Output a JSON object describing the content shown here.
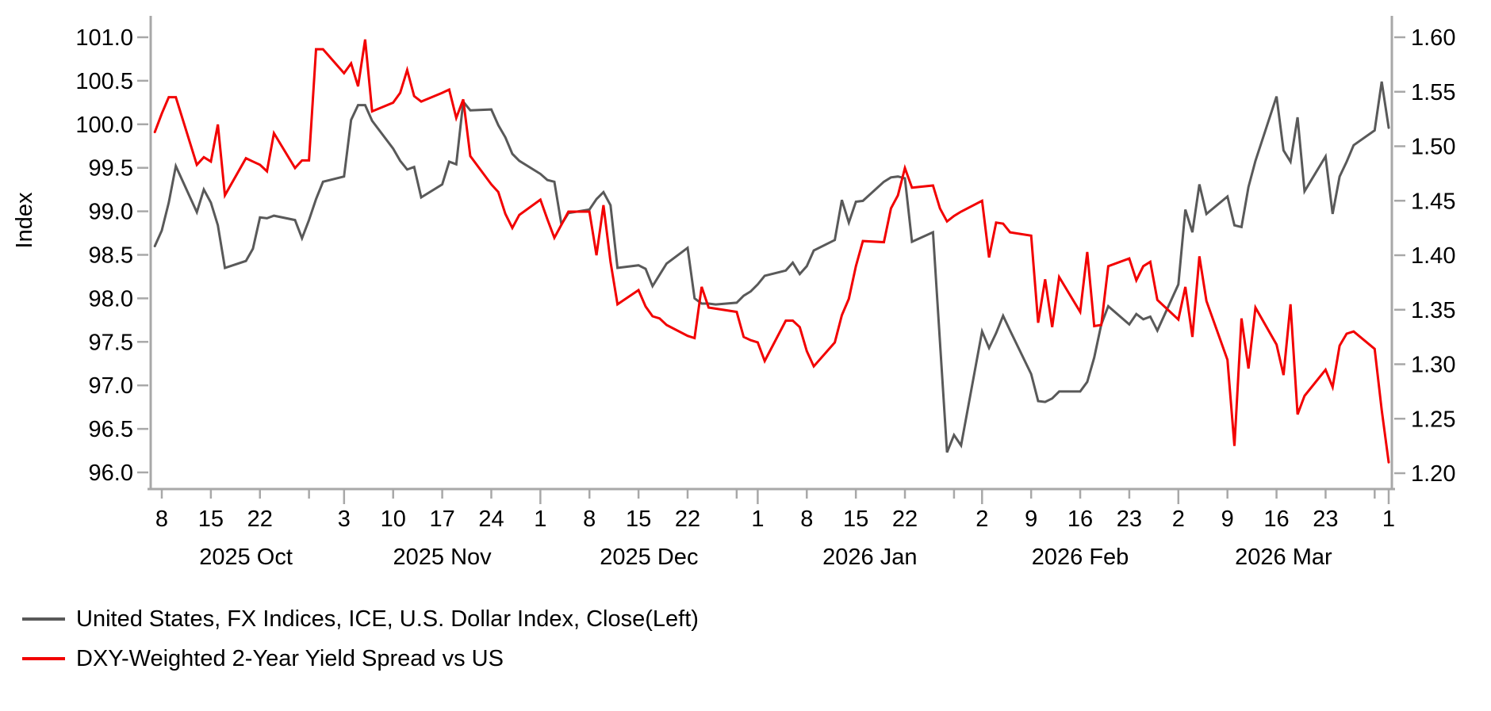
{
  "page": {
    "background": "#ffffff"
  },
  "chart_data": {
    "type": "line",
    "title": "",
    "grid": "off",
    "legend_position": "bottom-left",
    "left_axis": {
      "label": "Index",
      "min": 96.0,
      "max": 101.0,
      "ticks": [
        {
          "value": 101.0,
          "label": "101.0"
        },
        {
          "value": 100.5,
          "label": "100.5"
        },
        {
          "value": 100.0,
          "label": "100.0"
        },
        {
          "value": 99.5,
          "label": "99.5"
        },
        {
          "value": 99.0,
          "label": "99.0"
        },
        {
          "value": 98.5,
          "label": "98.5"
        },
        {
          "value": 98.0,
          "label": "98.0"
        },
        {
          "value": 97.5,
          "label": "97.5"
        },
        {
          "value": 97.0,
          "label": "97.0"
        },
        {
          "value": 96.5,
          "label": "96.5"
        },
        {
          "value": 96.0,
          "label": "96.0"
        }
      ]
    },
    "right_axis": {
      "label": "",
      "min": 1.2,
      "max": 1.6,
      "ticks": [
        {
          "value": 1.6,
          "label": "1.60"
        },
        {
          "value": 1.55,
          "label": "1.55"
        },
        {
          "value": 1.5,
          "label": "1.50"
        },
        {
          "value": 1.45,
          "label": "1.45"
        },
        {
          "value": 1.4,
          "label": "1.40"
        },
        {
          "value": 1.35,
          "label": "1.35"
        },
        {
          "value": 1.3,
          "label": "1.30"
        },
        {
          "value": 1.25,
          "label": "1.25"
        },
        {
          "value": 1.2,
          "label": "1.20"
        }
      ]
    },
    "x_axis": {
      "unit": "days since 2025-10-08",
      "week_ticks": [
        {
          "day": 0,
          "label": "8"
        },
        {
          "day": 7,
          "label": "15"
        },
        {
          "day": 14,
          "label": "22"
        },
        {
          "day": 26,
          "label": "3"
        },
        {
          "day": 33,
          "label": "10"
        },
        {
          "day": 40,
          "label": "17"
        },
        {
          "day": 47,
          "label": "24"
        },
        {
          "day": 54,
          "label": "1"
        },
        {
          "day": 61,
          "label": "8"
        },
        {
          "day": 68,
          "label": "15"
        },
        {
          "day": 75,
          "label": "22"
        },
        {
          "day": 85,
          "label": "1"
        },
        {
          "day": 92,
          "label": "8"
        },
        {
          "day": 99,
          "label": "15"
        },
        {
          "day": 106,
          "label": "22"
        },
        {
          "day": 117,
          "label": "2"
        },
        {
          "day": 124,
          "label": "9"
        },
        {
          "day": 131,
          "label": "16"
        },
        {
          "day": 138,
          "label": "23"
        },
        {
          "day": 145,
          "label": "2"
        },
        {
          "day": 152,
          "label": "9"
        },
        {
          "day": 159,
          "label": "16"
        },
        {
          "day": 166,
          "label": "23"
        },
        {
          "day": 175,
          "label": "1"
        }
      ],
      "minor_tick_days": [
        21,
        82,
        113,
        173
      ],
      "month_start_days": [
        26,
        54,
        85,
        117,
        145,
        175
      ],
      "month_labels": [
        {
          "day": 12,
          "label": "2025 Oct"
        },
        {
          "day": 40,
          "label": "2025 Nov"
        },
        {
          "day": 69.5,
          "label": "2025 Dec"
        },
        {
          "day": 101,
          "label": "2026 Jan"
        },
        {
          "day": 131,
          "label": "2026 Feb"
        },
        {
          "day": 160,
          "label": "2026 Mar"
        }
      ]
    },
    "colors": {
      "axis": "#a8a8a8",
      "gray_series": "#595959",
      "red_series": "#f20000"
    },
    "series": [
      {
        "name": "United States, FX Indices, ICE, U.S. Dollar Index, Close(Left)",
        "axis": "left",
        "color": "#595959",
        "points": [
          [
            -1,
            98.6
          ],
          [
            0,
            98.78
          ],
          [
            1,
            99.1
          ],
          [
            2,
            99.52
          ],
          [
            5,
            98.99
          ],
          [
            6,
            99.25
          ],
          [
            7,
            99.1
          ],
          [
            8,
            98.84
          ],
          [
            9,
            98.35
          ],
          [
            12,
            98.43
          ],
          [
            13,
            98.57
          ],
          [
            14,
            98.93
          ],
          [
            15,
            98.92
          ],
          [
            16,
            98.95
          ],
          [
            19,
            98.9
          ],
          [
            20,
            98.69
          ],
          [
            21,
            98.9
          ],
          [
            22,
            99.14
          ],
          [
            23,
            99.34
          ],
          [
            26,
            99.4
          ],
          [
            27,
            100.05
          ],
          [
            28,
            100.22
          ],
          [
            29,
            100.22
          ],
          [
            30,
            100.04
          ],
          [
            33,
            99.72
          ],
          [
            34,
            99.58
          ],
          [
            35,
            99.48
          ],
          [
            36,
            99.51
          ],
          [
            37,
            99.16
          ],
          [
            40,
            99.31
          ],
          [
            41,
            99.57
          ],
          [
            42,
            99.54
          ],
          [
            43,
            100.26
          ],
          [
            44,
            100.16
          ],
          [
            47,
            100.17
          ],
          [
            48,
            99.99
          ],
          [
            49,
            99.85
          ],
          [
            50,
            99.66
          ],
          [
            51,
            99.58
          ],
          [
            54,
            99.43
          ],
          [
            55,
            99.36
          ],
          [
            56,
            99.34
          ],
          [
            57,
            98.85
          ],
          [
            58,
            98.98
          ],
          [
            61,
            99.02
          ],
          [
            62,
            99.14
          ],
          [
            63,
            99.22
          ],
          [
            64,
            99.07
          ],
          [
            65,
            98.35
          ],
          [
            68,
            98.38
          ],
          [
            69,
            98.34
          ],
          [
            70,
            98.14
          ],
          [
            71,
            98.27
          ],
          [
            72,
            98.4
          ],
          [
            75,
            98.58
          ],
          [
            76,
            98.0
          ],
          [
            77,
            97.94
          ],
          [
            78,
            97.94
          ],
          [
            79,
            97.93
          ],
          [
            82,
            97.95
          ],
          [
            83,
            98.03
          ],
          [
            84,
            98.08
          ],
          [
            85,
            98.16
          ],
          [
            86,
            98.26
          ],
          [
            89,
            98.32
          ],
          [
            90,
            98.41
          ],
          [
            91,
            98.28
          ],
          [
            92,
            98.37
          ],
          [
            93,
            98.55
          ],
          [
            96,
            98.67
          ],
          [
            97,
            99.13
          ],
          [
            98,
            98.87
          ],
          [
            99,
            99.11
          ],
          [
            100,
            99.12
          ],
          [
            103,
            99.34
          ],
          [
            104,
            99.39
          ],
          [
            105,
            99.4
          ],
          [
            106,
            99.38
          ],
          [
            107,
            98.65
          ],
          [
            110,
            98.76
          ],
          [
            111,
            97.5
          ],
          [
            112,
            96.23
          ],
          [
            113,
            96.43
          ],
          [
            114,
            96.31
          ],
          [
            117,
            97.62
          ],
          [
            118,
            97.43
          ],
          [
            119,
            97.6
          ],
          [
            120,
            97.8
          ],
          [
            121,
            97.63
          ],
          [
            124,
            97.13
          ],
          [
            125,
            96.82
          ],
          [
            126,
            96.81
          ],
          [
            127,
            96.85
          ],
          [
            128,
            96.93
          ],
          [
            131,
            96.93
          ],
          [
            132,
            97.04
          ],
          [
            133,
            97.32
          ],
          [
            134,
            97.7
          ],
          [
            135,
            97.91
          ],
          [
            138,
            97.7
          ],
          [
            139,
            97.82
          ],
          [
            140,
            97.76
          ],
          [
            141,
            97.79
          ],
          [
            142,
            97.63
          ],
          [
            145,
            98.16
          ],
          [
            146,
            99.02
          ],
          [
            147,
            98.76
          ],
          [
            148,
            99.31
          ],
          [
            149,
            98.97
          ],
          [
            152,
            99.17
          ],
          [
            153,
            98.84
          ],
          [
            154,
            98.82
          ],
          [
            155,
            99.28
          ],
          [
            156,
            99.58
          ],
          [
            159,
            100.32
          ],
          [
            160,
            99.7
          ],
          [
            161,
            99.57
          ],
          [
            162,
            100.08
          ],
          [
            163,
            99.23
          ],
          [
            166,
            99.63
          ],
          [
            167,
            98.97
          ],
          [
            168,
            99.4
          ],
          [
            169,
            99.57
          ],
          [
            170,
            99.76
          ],
          [
            173,
            99.93
          ],
          [
            174,
            100.49
          ],
          [
            175,
            99.96
          ]
        ]
      },
      {
        "name": "DXY-Weighted 2-Year Yield Spread vs US",
        "axis": "right",
        "color": "#f20000",
        "points": [
          [
            -1,
            1.513
          ],
          [
            0,
            1.53
          ],
          [
            1,
            1.545
          ],
          [
            2,
            1.545
          ],
          [
            5,
            1.483
          ],
          [
            6,
            1.49
          ],
          [
            7,
            1.486
          ],
          [
            8,
            1.52
          ],
          [
            9,
            1.455
          ],
          [
            12,
            1.489
          ],
          [
            13,
            1.486
          ],
          [
            14,
            1.483
          ],
          [
            15,
            1.477
          ],
          [
            16,
            1.512
          ],
          [
            19,
            1.48
          ],
          [
            20,
            1.487
          ],
          [
            21,
            1.487
          ],
          [
            22,
            1.589
          ],
          [
            23,
            1.589
          ],
          [
            26,
            1.567
          ],
          [
            27,
            1.576
          ],
          [
            28,
            1.555
          ],
          [
            29,
            1.598
          ],
          [
            30,
            1.532
          ],
          [
            33,
            1.54
          ],
          [
            34,
            1.549
          ],
          [
            35,
            1.57
          ],
          [
            36,
            1.546
          ],
          [
            37,
            1.541
          ],
          [
            40,
            1.549
          ],
          [
            41,
            1.552
          ],
          [
            42,
            1.526
          ],
          [
            43,
            1.543
          ],
          [
            44,
            1.491
          ],
          [
            47,
            1.465
          ],
          [
            48,
            1.458
          ],
          [
            49,
            1.438
          ],
          [
            50,
            1.425
          ],
          [
            51,
            1.437
          ],
          [
            54,
            1.451
          ],
          [
            55,
            1.433
          ],
          [
            56,
            1.416
          ],
          [
            57,
            1.428
          ],
          [
            58,
            1.44
          ],
          [
            61,
            1.44
          ],
          [
            62,
            1.4
          ],
          [
            63,
            1.446
          ],
          [
            64,
            1.394
          ],
          [
            65,
            1.355
          ],
          [
            68,
            1.368
          ],
          [
            69,
            1.353
          ],
          [
            70,
            1.344
          ],
          [
            71,
            1.342
          ],
          [
            72,
            1.336
          ],
          [
            75,
            1.326
          ],
          [
            76,
            1.324
          ],
          [
            77,
            1.371
          ],
          [
            78,
            1.352
          ],
          [
            79,
            1.351
          ],
          [
            82,
            1.348
          ],
          [
            83,
            1.325
          ],
          [
            84,
            1.322
          ],
          [
            85,
            1.32
          ],
          [
            86,
            1.303
          ],
          [
            89,
            1.34
          ],
          [
            90,
            1.34
          ],
          [
            91,
            1.334
          ],
          [
            92,
            1.312
          ],
          [
            93,
            1.298
          ],
          [
            96,
            1.32
          ],
          [
            97,
            1.345
          ],
          [
            98,
            1.36
          ],
          [
            99,
            1.39
          ],
          [
            100,
            1.413
          ],
          [
            103,
            1.412
          ],
          [
            104,
            1.443
          ],
          [
            105,
            1.455
          ],
          [
            106,
            1.48
          ],
          [
            107,
            1.462
          ],
          [
            110,
            1.464
          ],
          [
            111,
            1.443
          ],
          [
            112,
            1.431
          ],
          [
            113,
            1.436
          ],
          [
            114,
            1.44
          ],
          [
            117,
            1.45
          ],
          [
            118,
            1.398
          ],
          [
            119,
            1.43
          ],
          [
            120,
            1.429
          ],
          [
            121,
            1.421
          ],
          [
            124,
            1.418
          ],
          [
            125,
            1.338
          ],
          [
            126,
            1.378
          ],
          [
            127,
            1.334
          ],
          [
            128,
            1.38
          ],
          [
            131,
            1.348
          ],
          [
            132,
            1.403
          ],
          [
            133,
            1.335
          ],
          [
            134,
            1.336
          ],
          [
            135,
            1.39
          ],
          [
            138,
            1.397
          ],
          [
            139,
            1.377
          ],
          [
            140,
            1.39
          ],
          [
            141,
            1.394
          ],
          [
            142,
            1.359
          ],
          [
            145,
            1.341
          ],
          [
            146,
            1.371
          ],
          [
            147,
            1.325
          ],
          [
            148,
            1.399
          ],
          [
            149,
            1.358
          ],
          [
            152,
            1.304
          ],
          [
            153,
            1.225
          ],
          [
            154,
            1.342
          ],
          [
            155,
            1.296
          ],
          [
            156,
            1.352
          ],
          [
            159,
            1.318
          ],
          [
            160,
            1.29
          ],
          [
            161,
            1.355
          ],
          [
            162,
            1.254
          ],
          [
            163,
            1.271
          ],
          [
            166,
            1.295
          ],
          [
            167,
            1.279
          ],
          [
            168,
            1.317
          ],
          [
            169,
            1.328
          ],
          [
            170,
            1.33
          ],
          [
            173,
            1.314
          ],
          [
            174,
            1.258
          ],
          [
            175,
            1.21
          ]
        ]
      }
    ]
  }
}
